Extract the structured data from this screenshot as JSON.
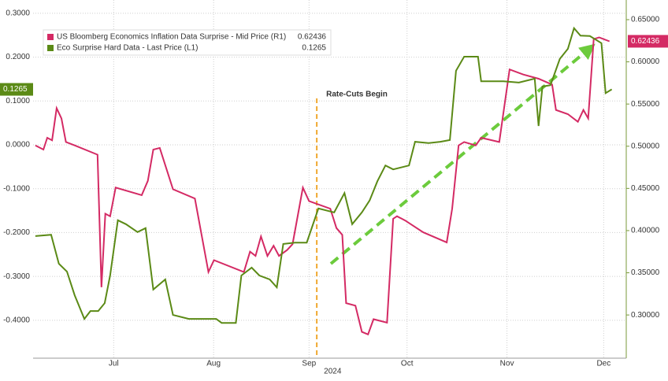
{
  "chart_data": {
    "type": "line",
    "x_year_label": "2024",
    "xlim": [
      0,
      184
    ],
    "xticks": [
      {
        "value": 25,
        "label": "Jul"
      },
      {
        "value": 56,
        "label": "Aug"
      },
      {
        "value": 85.6,
        "label": "Sep"
      },
      {
        "value": 116,
        "label": "Oct"
      },
      {
        "value": 147,
        "label": "Nov"
      },
      {
        "value": 177,
        "label": "Dec"
      }
    ],
    "ylim": [
      -0.4865,
      0.3303
    ],
    "yticks": [
      {
        "value": 0.3,
        "label": "0.3000"
      },
      {
        "value": 0.2,
        "label": "0.2000"
      },
      {
        "value": 0.1,
        "label": "0.1000"
      },
      {
        "value": 0,
        "label": "0.0000"
      },
      {
        "value": -0.1,
        "label": "-0.1000"
      },
      {
        "value": -0.2,
        "label": "-0.2000"
      },
      {
        "value": -0.3,
        "label": "-0.3000"
      },
      {
        "value": -0.4,
        "label": "-0.4000"
      }
    ],
    "y2lim": [
      0.2488,
      0.6733
    ],
    "y2ticks": [
      {
        "value": 0.65,
        "label": "0.65000"
      },
      {
        "value": 0.6,
        "label": "0.60000"
      },
      {
        "value": 0.55,
        "label": "0.55000"
      },
      {
        "value": 0.5,
        "label": "0.50000"
      },
      {
        "value": 0.45,
        "label": "0.45000"
      },
      {
        "value": 0.4,
        "label": "0.40000"
      },
      {
        "value": 0.35,
        "label": "0.35000"
      },
      {
        "value": 0.3,
        "label": "0.30000"
      }
    ],
    "grid": true,
    "annotations": [
      {
        "text": "Rate-Cuts Begin",
        "x": 88
      }
    ],
    "series": [
      {
        "name": "US Bloomberg Economics Inflation Data Surprise - Mid Price (R1)",
        "color": "#d42a64",
        "axis": "y2",
        "last_price": 0.62436,
        "x": [
          0.7,
          3.2,
          4.4,
          5.9,
          7.3,
          8.8,
          10.2,
          12.9,
          20,
          21.2,
          22.4,
          23.9,
          25.6,
          33.7,
          35.6,
          37.3,
          39.3,
          43.4,
          50.2,
          54.4,
          56.1,
          65.4,
          67.3,
          69,
          70.7,
          72.7,
          74.6,
          76.3,
          78.8,
          80.5,
          83.7,
          85.6,
          92.2,
          94.1,
          95.9,
          97.1,
          100,
          102,
          103.9,
          105.6,
          109.8,
          111.7,
          112.9,
          115.4,
          121,
          128.3,
          130,
          132,
          133.7,
          137.3,
          139,
          144.6,
          147.8,
          152,
          156.8,
          161,
          162.2,
          165.9,
          169,
          170.7,
          172.2,
          173.9,
          175.6,
          178.8
        ],
        "values": [
          0.501,
          0.496,
          0.51,
          0.507,
          0.545,
          0.533,
          0.505,
          0.501,
          0.49,
          0.333,
          0.42,
          0.417,
          0.451,
          0.442,
          0.459,
          0.496,
          0.498,
          0.449,
          0.438,
          0.351,
          0.365,
          0.351,
          0.375,
          0.37,
          0.393,
          0.37,
          0.382,
          0.37,
          0.377,
          0.384,
          0.451,
          0.435,
          0.426,
          0.403,
          0.395,
          0.314,
          0.311,
          0.28,
          0.277,
          0.295,
          0.291,
          0.414,
          0.417,
          0.412,
          0.398,
          0.386,
          0.426,
          0.501,
          0.505,
          0.501,
          0.51,
          0.505,
          0.591,
          0.585,
          0.58,
          0.573,
          0.543,
          0.538,
          0.529,
          0.543,
          0.533,
          0.627,
          0.629,
          0.62436
        ]
      },
      {
        "name": "Eco Surprise Hard Data - Last Price (L1)",
        "color": "#5b8a16",
        "axis": "y",
        "last_price": 0.1265,
        "x": [
          0.7,
          5.6,
          8,
          10.5,
          12.9,
          15.9,
          17.8,
          20.2,
          22.2,
          23.9,
          26.3,
          28.8,
          32.4,
          34.9,
          37.3,
          41,
          43.4,
          48.3,
          56.8,
          58.5,
          62.9,
          64.6,
          67.8,
          70.2,
          73.4,
          75.6,
          77.6,
          81.2,
          84.9,
          88.5,
          93.4,
          96.6,
          99,
          102,
          104.4,
          106.8,
          109.3,
          111.7,
          116.6,
          118.5,
          122.7,
          126.3,
          129.3,
          131.2,
          133.7,
          138,
          139,
          145.9,
          150.7,
          155.6,
          156.8,
          158,
          160.5,
          163.4,
          165.9,
          167.8,
          169.8,
          172.7,
          176.3,
          177.6,
          179.5
        ],
        "values": [
          -0.208,
          -0.205,
          -0.271,
          -0.289,
          -0.343,
          -0.397,
          -0.379,
          -0.379,
          -0.361,
          -0.298,
          -0.172,
          -0.181,
          -0.199,
          -0.19,
          -0.33,
          -0.307,
          -0.388,
          -0.397,
          -0.397,
          -0.406,
          -0.406,
          -0.298,
          -0.28,
          -0.298,
          -0.307,
          -0.325,
          -0.226,
          -0.223,
          -0.223,
          -0.145,
          -0.154,
          -0.11,
          -0.181,
          -0.154,
          -0.127,
          -0.083,
          -0.047,
          -0.056,
          -0.047,
          0.007,
          0.004,
          0.007,
          0.011,
          0.169,
          0.201,
          0.201,
          0.145,
          0.145,
          0.142,
          0.151,
          0.043,
          0.133,
          0.136,
          0.196,
          0.219,
          0.266,
          0.249,
          0.248,
          0.232,
          0.118,
          0.1265
        ]
      }
    ]
  }
}
